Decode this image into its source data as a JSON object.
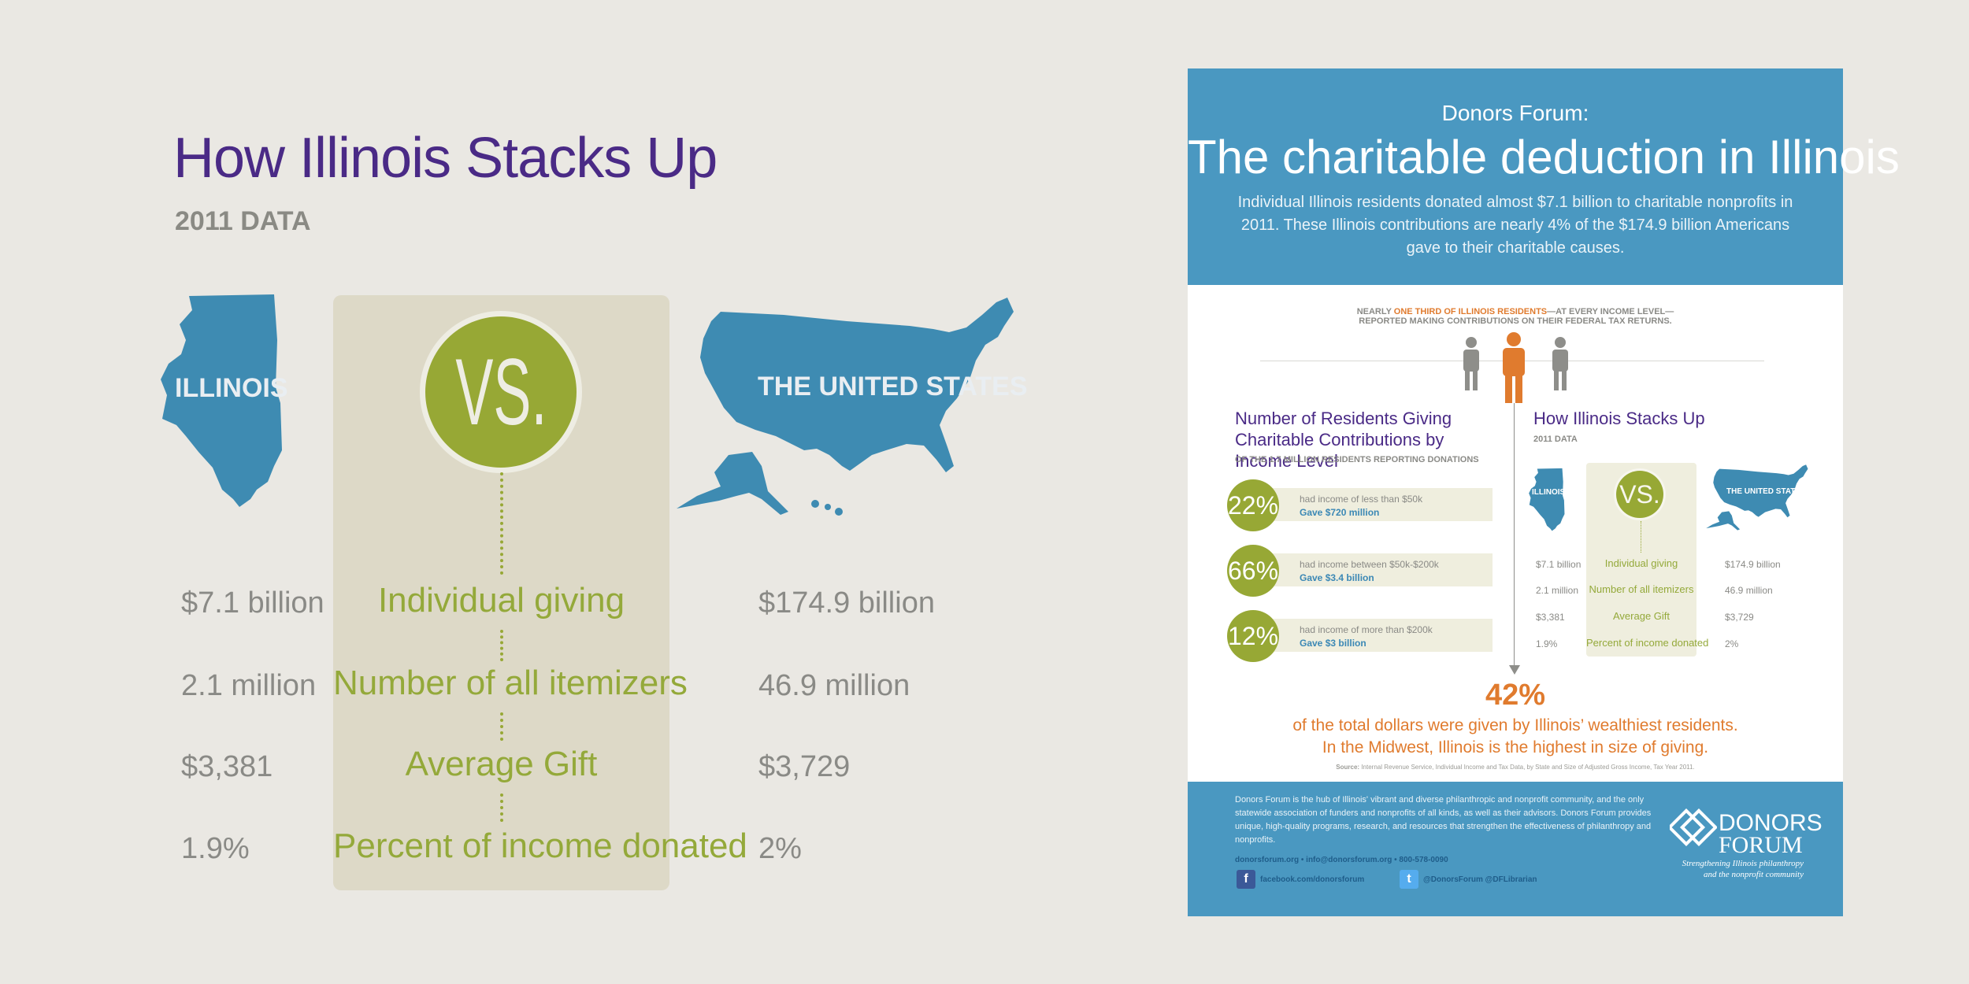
{
  "left": {
    "title": "How Illinois Stacks Up",
    "subtitle": "2011 DATA",
    "illinois_label": "ILLINOIS",
    "us_label": "THE UNITED STATES",
    "vs_label": "VS.",
    "metrics": [
      {
        "label": "Individual giving",
        "illinois": "$7.1 billion",
        "us": "$174.9 billion"
      },
      {
        "label": "Number of all itemizers",
        "illinois": "2.1 million",
        "us": "46.9 million"
      },
      {
        "label": "Average Gift",
        "illinois": "$3,381",
        "us": "$3,729"
      },
      {
        "label": "Percent of income donated",
        "illinois": "1.9%",
        "us": "2%"
      }
    ]
  },
  "card": {
    "header": {
      "org": "Donors Forum:",
      "title": "The charitable deduction in Illinois",
      "description": "Individual Illinois residents donated almost $7.1 billion to charitable nonprofits in 2011. These Illinois contributions are nearly 4% of the $174.9 billion Americans gave to their charitable causes."
    },
    "intro_prefix": "NEARLY ",
    "intro_highlight": "ONE THIRD OF ILLINOIS RESIDENTS",
    "intro_suffix": "—AT EVERY INCOME LEVEL—",
    "intro_line2": "REPORTED MAKING CONTRIBUTIONS ON THEIR FEDERAL TAX RETURNS.",
    "income_section": {
      "title": "Number of Residents Giving Charitable Contributions by Income Level",
      "subtitle": "OF THE 1.7 MILLION RESIDENTS REPORTING DONATIONS",
      "items": [
        {
          "pct": "22%",
          "desc": "had income of less than $50k",
          "gave": "Gave $720 million"
        },
        {
          "pct": "66%",
          "desc": "had income between $50k-$200k",
          "gave": "Gave $3.4 billion"
        },
        {
          "pct": "12%",
          "desc": "had income of more than $200k",
          "gave": "Gave $3 billion"
        }
      ]
    },
    "mini": {
      "title": "How Illinois Stacks Up",
      "subtitle": "2011 DATA",
      "illinois_label": "ILLINOIS",
      "us_label": "THE UNITED STATES",
      "vs_label": "VS.",
      "metrics": [
        {
          "label": "Individual giving",
          "illinois": "$7.1 billion",
          "us": "$174.9 billion"
        },
        {
          "label": "Number of all itemizers",
          "illinois": "2.1 million",
          "us": "46.9 million"
        },
        {
          "label": "Average Gift",
          "illinois": "$3,381",
          "us": "$3,729"
        },
        {
          "label": "Percent of income donated",
          "illinois": "1.9%",
          "us": "2%"
        }
      ]
    },
    "highlight": {
      "pct": "42%",
      "line1": "of the total dollars were given by Illinois’ wealthiest residents.",
      "line2": "In the Midwest, Illinois is the highest in size of giving.",
      "source_label": "Source:",
      "source_text": " Internal Revenue Service, Individual Income and Tax Data, by State and Size of Adjusted Gross Income, Tax Year 2011."
    },
    "footer": {
      "about": "Donors Forum is the hub of Illinois' vibrant and diverse philanthropic and nonprofit community, and the only statewide association of funders and nonprofits of all kinds, as well as their advisors. Donors Forum provides unique, high-quality programs, research, and resources that strengthen the effectiveness of philanthropy and nonprofits.",
      "contact": "donorsforum.org  •  info@donorsforum.org  •  800-578-0090",
      "facebook": "facebook.com/donorsforum",
      "twitter": "@DonorsForum  @DFLibrarian",
      "logo_line1": "DONORS",
      "logo_line2": "FORUM",
      "tagline1": "Strengthening Illinois philanthropy",
      "tagline2": "and the nonprofit community"
    }
  },
  "colors": {
    "purple": "#4a2a86",
    "blue": "#4a98c1",
    "green": "#97a835",
    "orange": "#e07b2e",
    "gray_text": "#8a8a86",
    "background": "#eae8e3"
  },
  "icons": [
    "illinois-map-icon",
    "usa-map-icon",
    "person-icon",
    "facebook-icon",
    "twitter-icon",
    "donors-forum-logo-icon"
  ]
}
